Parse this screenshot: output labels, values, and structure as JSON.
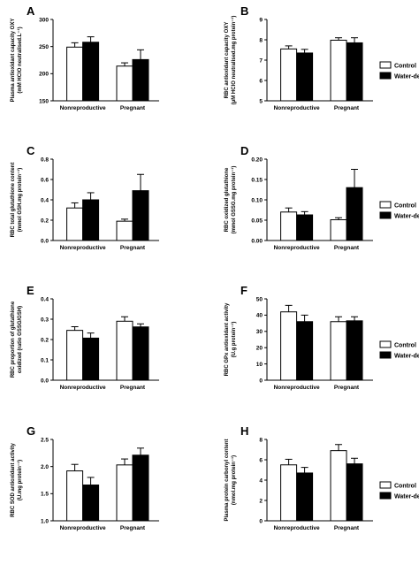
{
  "legend": {
    "control": "Control",
    "water_deprived": "Water-deprived"
  },
  "colors": {
    "control": "#ffffff",
    "water_deprived": "#000000",
    "stroke": "#000000"
  },
  "chart_data": [
    {
      "id": "A",
      "type": "bar",
      "letter": "A",
      "ylabel": [
        "Plasma antioxidant capacity OXY",
        "(mM HClO neutralised.L⁻¹)"
      ],
      "ylim": [
        150,
        300
      ],
      "ticks": [
        150,
        200,
        250,
        300
      ],
      "categories": [
        "Nonreproductive",
        "Pregnant"
      ],
      "series": [
        {
          "name": "Control",
          "values": [
            249,
            214
          ],
          "errors": [
            8,
            6
          ]
        },
        {
          "name": "Water-deprived",
          "values": [
            258,
            226
          ],
          "errors": [
            10,
            18
          ]
        }
      ],
      "legend_shown": false
    },
    {
      "id": "B",
      "type": "bar",
      "letter": "B",
      "ylabel": [
        "RBC antioxidant capacity OXY",
        "(μM HClO neutralised.mg protein⁻¹)"
      ],
      "ylim": [
        5,
        9
      ],
      "ticks": [
        5,
        6,
        7,
        8,
        9
      ],
      "categories": [
        "Nonreproductive",
        "Pregnant"
      ],
      "series": [
        {
          "name": "Control",
          "values": [
            7.55,
            7.98
          ],
          "errors": [
            0.15,
            0.12
          ]
        },
        {
          "name": "Water-deprived",
          "values": [
            7.35,
            7.85
          ],
          "errors": [
            0.18,
            0.25
          ]
        }
      ],
      "legend_shown": true
    },
    {
      "id": "C",
      "type": "bar",
      "letter": "C",
      "ylabel": [
        "RBC total glutathione content",
        "(mmol GSH.mg protein⁻¹)"
      ],
      "ylim": [
        0,
        0.8
      ],
      "ticks": [
        0.0,
        0.2,
        0.4,
        0.6,
        0.8
      ],
      "categories": [
        "Nonreproductive",
        "Pregnant"
      ],
      "series": [
        {
          "name": "Control",
          "values": [
            0.32,
            0.19
          ],
          "errors": [
            0.05,
            0.02
          ]
        },
        {
          "name": "Water-deprived",
          "values": [
            0.4,
            0.49
          ],
          "errors": [
            0.07,
            0.16
          ]
        }
      ],
      "legend_shown": false
    },
    {
      "id": "D",
      "type": "bar",
      "letter": "D",
      "ylabel": [
        "RBC oxidized glutathione",
        "(mmol GSSG.mg protein⁻¹)"
      ],
      "ylim": [
        0,
        0.2
      ],
      "ticks": [
        0.0,
        0.05,
        0.1,
        0.15,
        0.2
      ],
      "categories": [
        "Nonreproductive",
        "Pregnant"
      ],
      "series": [
        {
          "name": "Control",
          "values": [
            0.07,
            0.051
          ],
          "errors": [
            0.01,
            0.005
          ]
        },
        {
          "name": "Water-deprived",
          "values": [
            0.063,
            0.13
          ],
          "errors": [
            0.008,
            0.045
          ]
        }
      ],
      "legend_shown": true
    },
    {
      "id": "E",
      "type": "bar",
      "letter": "E",
      "ylabel": [
        "RBC proportion of glutathione",
        "oxidized (ratio GSSG/GSH)"
      ],
      "ylim": [
        0,
        0.4
      ],
      "ticks": [
        0.0,
        0.1,
        0.2,
        0.3,
        0.4
      ],
      "categories": [
        "Nonreproductive",
        "Pregnant"
      ],
      "series": [
        {
          "name": "Control",
          "values": [
            0.245,
            0.29
          ],
          "errors": [
            0.018,
            0.022
          ]
        },
        {
          "name": "Water-deprived",
          "values": [
            0.207,
            0.262
          ],
          "errors": [
            0.025,
            0.015
          ]
        }
      ],
      "legend_shown": false
    },
    {
      "id": "F",
      "type": "bar",
      "letter": "F",
      "ylabel": [
        "RBC GPx antioxidant activity",
        "(U.g protein⁻¹)"
      ],
      "ylim": [
        0,
        50
      ],
      "ticks": [
        0,
        10,
        20,
        30,
        40,
        50
      ],
      "categories": [
        "Nonreproductive",
        "Pregnant"
      ],
      "series": [
        {
          "name": "Control",
          "values": [
            42,
            36
          ],
          "errors": [
            4,
            3
          ]
        },
        {
          "name": "Water-deprived",
          "values": [
            36,
            36.5
          ],
          "errors": [
            4,
            2.5
          ]
        }
      ],
      "legend_shown": true
    },
    {
      "id": "G",
      "type": "bar",
      "letter": "G",
      "ylabel": [
        "RBC SOD antioxidant activity",
        "(U.mg protein⁻¹)"
      ],
      "ylim": [
        1.0,
        2.5
      ],
      "ticks": [
        1.0,
        1.5,
        2.0,
        2.5
      ],
      "categories": [
        "Nonreproductive",
        "Pregnant"
      ],
      "series": [
        {
          "name": "Control",
          "values": [
            1.92,
            2.03
          ],
          "errors": [
            0.12,
            0.11
          ]
        },
        {
          "name": "Water-deprived",
          "values": [
            1.66,
            2.21
          ],
          "errors": [
            0.14,
            0.13
          ]
        }
      ],
      "legend_shown": false
    },
    {
      "id": "H",
      "type": "bar",
      "letter": "H",
      "ylabel": [
        "Plasma protein carbonyl content",
        "(nmol.mg protein⁻¹)"
      ],
      "ylim": [
        0,
        8
      ],
      "ticks": [
        0,
        2,
        4,
        6,
        8
      ],
      "categories": [
        "Nonreproductive",
        "Pregnant"
      ],
      "series": [
        {
          "name": "Control",
          "values": [
            5.5,
            6.9
          ],
          "errors": [
            0.55,
            0.6
          ]
        },
        {
          "name": "Water-deprived",
          "values": [
            4.7,
            5.6
          ],
          "errors": [
            0.55,
            0.55
          ]
        }
      ],
      "legend_shown": true
    }
  ]
}
